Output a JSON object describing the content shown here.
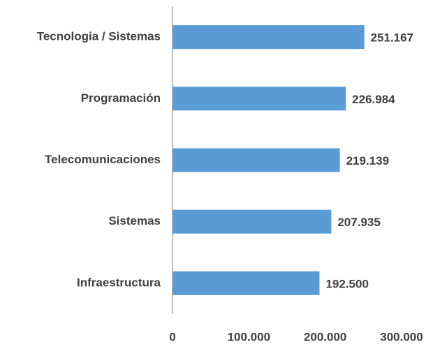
{
  "chart_data": {
    "type": "bar",
    "orientation": "horizontal",
    "categories": [
      "Tecnologia / Sistemas",
      "Programación",
      "Telecomunicaciones",
      "Sistemas",
      "Infraestructura"
    ],
    "values": [
      251167,
      226984,
      219139,
      207935,
      192500
    ],
    "value_labels": [
      "251.167",
      "226.984",
      "219.139",
      "207.935",
      "192.500"
    ],
    "color": "#5b9bd5",
    "xlim": [
      0,
      300000
    ],
    "xticks": [
      0,
      {
        "value": 100000,
        "label": "100.000"
      },
      {
        "value": 200000,
        "label": "200.000"
      },
      {
        "value": 300000,
        "label": "300.000"
      }
    ],
    "grid": false
  }
}
